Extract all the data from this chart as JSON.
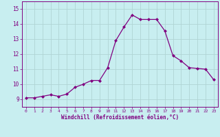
{
  "x": [
    0,
    1,
    2,
    3,
    4,
    5,
    6,
    7,
    8,
    9,
    10,
    11,
    12,
    13,
    14,
    15,
    16,
    17,
    18,
    19,
    20,
    21,
    22,
    23
  ],
  "y": [
    9.1,
    9.1,
    9.2,
    9.3,
    9.2,
    9.35,
    9.8,
    10.0,
    10.25,
    10.25,
    11.1,
    12.9,
    13.8,
    14.6,
    14.3,
    14.3,
    14.3,
    13.55,
    11.9,
    11.55,
    11.1,
    11.05,
    11.0,
    10.3
  ],
  "line_color": "#800080",
  "marker": "D",
  "marker_size": 2,
  "bg_color": "#c8eef0",
  "grid_color": "#b0d4d4",
  "xlabel": "Windchill (Refroidissement éolien,°C)",
  "xlabel_color": "#800080",
  "tick_color": "#800080",
  "ylim": [
    8.5,
    15.5
  ],
  "xlim": [
    -0.5,
    23.5
  ],
  "yticks": [
    9,
    10,
    11,
    12,
    13,
    14,
    15
  ],
  "xticks": [
    0,
    1,
    2,
    3,
    4,
    5,
    6,
    7,
    8,
    9,
    10,
    11,
    12,
    13,
    14,
    15,
    16,
    17,
    18,
    19,
    20,
    21,
    22,
    23
  ],
  "spine_color": "#800080",
  "figsize": [
    3.2,
    2.0
  ],
  "dpi": 100
}
